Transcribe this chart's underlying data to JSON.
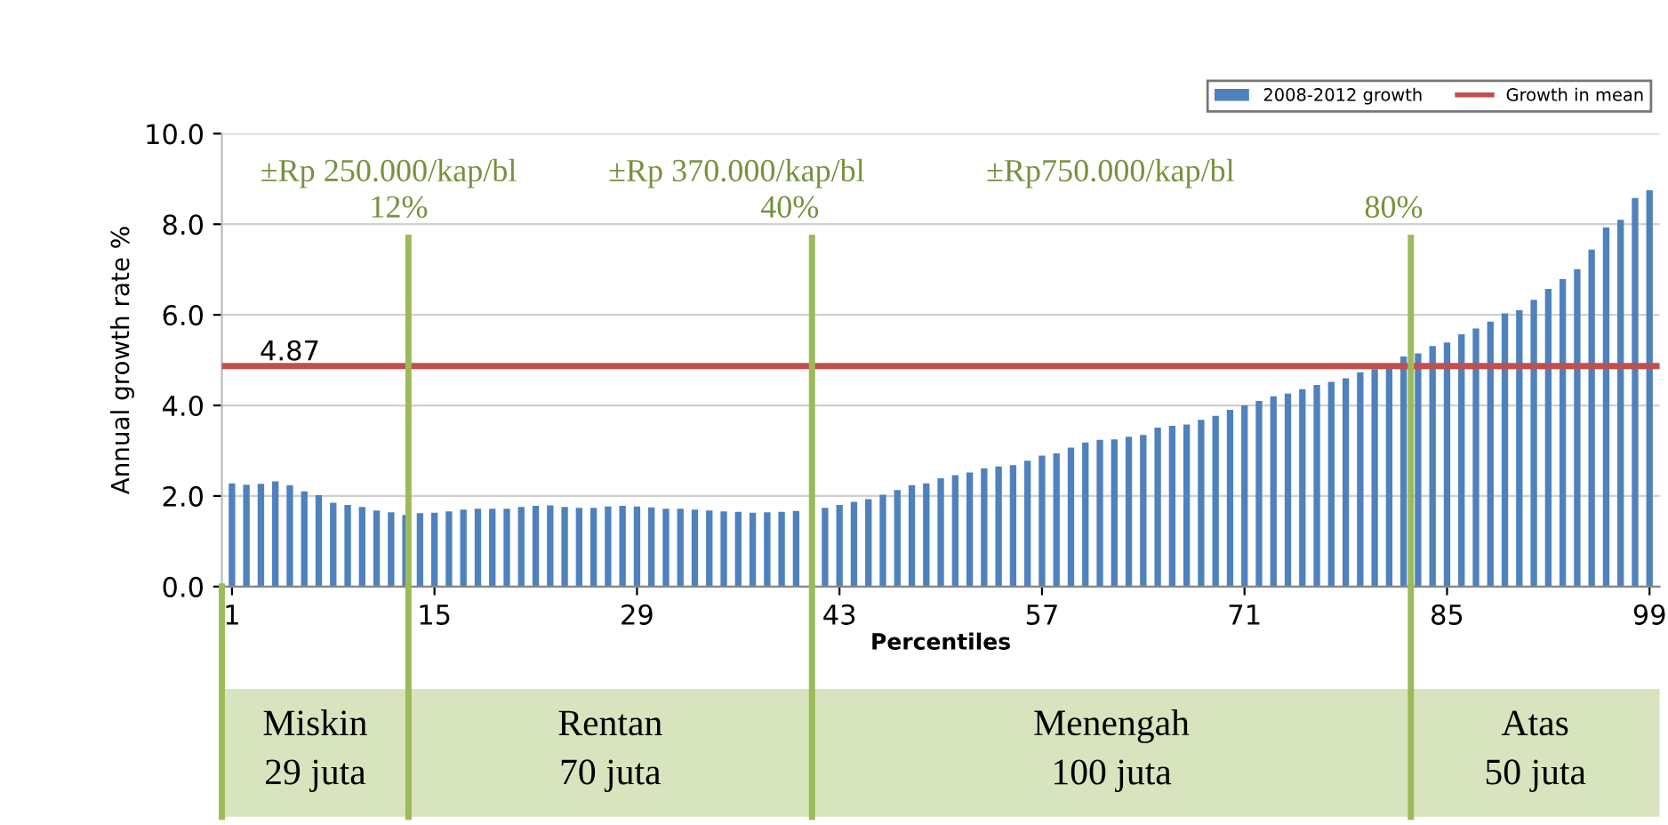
{
  "chart_data": {
    "type": "bar",
    "xlabel": "Percentiles",
    "ylabel": "Annual growth rate %",
    "x": [
      1,
      2,
      3,
      4,
      5,
      6,
      7,
      8,
      9,
      10,
      11,
      12,
      13,
      14,
      15,
      16,
      17,
      18,
      19,
      20,
      21,
      22,
      23,
      24,
      25,
      26,
      27,
      28,
      29,
      30,
      31,
      32,
      33,
      34,
      35,
      36,
      37,
      38,
      39,
      40,
      41,
      42,
      43,
      44,
      45,
      46,
      47,
      48,
      49,
      50,
      51,
      52,
      53,
      54,
      55,
      56,
      57,
      58,
      59,
      60,
      61,
      62,
      63,
      64,
      65,
      66,
      67,
      68,
      69,
      70,
      71,
      72,
      73,
      74,
      75,
      76,
      77,
      78,
      79,
      80,
      81,
      82,
      83,
      84,
      85,
      86,
      87,
      88,
      89,
      90,
      91,
      92,
      93,
      94,
      95,
      96,
      97,
      98,
      99
    ],
    "series": [
      {
        "name": "2008-2012 growth",
        "color": "#4f81bd",
        "values": [
          2.28,
          2.25,
          2.27,
          2.32,
          2.24,
          2.1,
          2.02,
          1.85,
          1.8,
          1.76,
          1.68,
          1.64,
          1.58,
          1.62,
          1.63,
          1.66,
          1.7,
          1.72,
          1.72,
          1.72,
          1.76,
          1.78,
          1.79,
          1.76,
          1.74,
          1.74,
          1.77,
          1.78,
          1.77,
          1.75,
          1.72,
          1.72,
          1.7,
          1.68,
          1.66,
          1.65,
          1.63,
          1.64,
          1.65,
          1.67,
          null,
          1.74,
          1.8,
          1.87,
          1.93,
          2.03,
          2.13,
          2.24,
          2.28,
          2.39,
          2.46,
          2.52,
          2.61,
          2.65,
          2.68,
          2.78,
          2.89,
          2.94,
          3.07,
          3.18,
          3.24,
          3.25,
          3.31,
          3.35,
          3.51,
          3.55,
          3.58,
          3.68,
          3.77,
          3.9,
          4.0,
          4.1,
          4.2,
          4.26,
          4.36,
          4.45,
          4.52,
          4.6,
          4.73,
          4.8,
          4.89,
          5.08,
          5.15,
          5.31,
          5.39,
          5.57,
          5.7,
          5.85,
          6.03,
          6.1,
          6.33,
          6.57,
          6.79,
          7.01,
          7.44,
          7.93,
          8.1,
          8.58,
          8.75
        ]
      },
      {
        "name": "Growth in mean",
        "type": "line",
        "color": "#c0504d",
        "x": [
          0.3,
          99.7
        ],
        "values": [
          4.87,
          4.87
        ]
      }
    ],
    "xlim": [
      0.3,
      99.7
    ],
    "xticks": [
      1,
      15,
      29,
      43,
      57,
      71,
      85,
      99
    ],
    "ylim": [
      0,
      10
    ],
    "yticks": [
      {
        "value": 0,
        "label": "0.0"
      },
      {
        "value": 2,
        "label": "2.0"
      },
      {
        "value": 4,
        "label": "4.0"
      },
      {
        "value": 6,
        "label": "6.0"
      },
      {
        "value": 8,
        "label": "8.0"
      },
      {
        "value": 10,
        "label": "10.0"
      }
    ],
    "grid": "y",
    "legend": "top right",
    "ref_lines": [
      {
        "axis": "x",
        "value": 13.2,
        "color": "#9bbb59"
      },
      {
        "axis": "x",
        "value": 41.1,
        "color": "#9bbb59"
      },
      {
        "axis": "x",
        "value": 82.5,
        "color": "#9bbb59"
      }
    ],
    "annotations": [
      {
        "text": "4.87",
        "x": 5,
        "y": 4.87
      },
      "±Rp 250.000/kap/bl",
      "±Rp 370.000/kap/bl",
      "±Rp750.000/kap/bl",
      "12%",
      "40%",
      "80%",
      "Miskin\n29 juta",
      "Rentan\n70 juta",
      "Menengah\n100 juta",
      "Atas\n50 juta"
    ]
  }
}
